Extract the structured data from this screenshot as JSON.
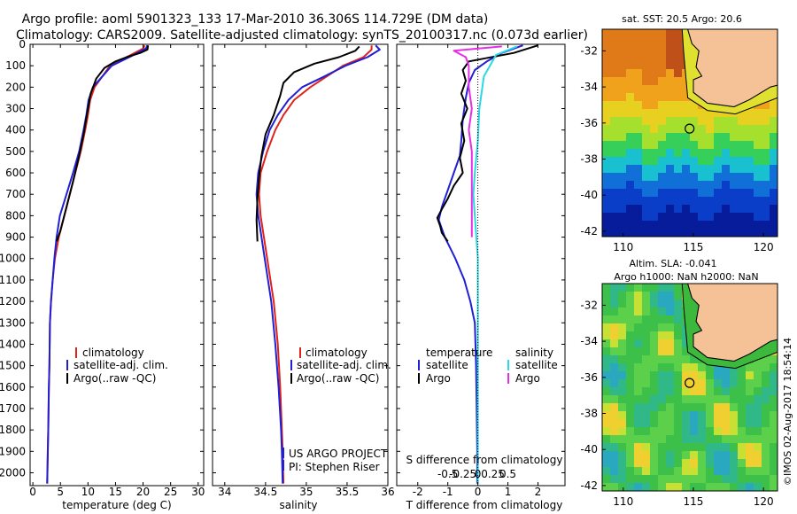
{
  "header": {
    "title_line1": "Argo profile: aoml 5901323_133 17-Mar-2010 36.306S 114.729E (DM data)",
    "title_line2": "Climatology: CARS2009. Satellite-adjusted climatology: synTS_20100317.nc (0.073d earlier)"
  },
  "depth_ticks": [
    "0",
    "100",
    "200",
    "300",
    "400",
    "500",
    "600",
    "700",
    "800",
    "900",
    "1000",
    "1100",
    "1200",
    "1300",
    "1400",
    "1500",
    "1600",
    "1700",
    "1800",
    "1900",
    "2000"
  ],
  "colors": {
    "climatology": "#e0221a",
    "satellite": "#1f1fd6",
    "argo": "#000000",
    "sal_satellite": "#29d9e3",
    "sal_argo": "#e62ee6",
    "land": "#f5c196",
    "coast_band": "#3cb83c"
  },
  "legend": {
    "climatology": "climatology",
    "satellite": "satellite-adj. clim.",
    "argo": "Argo(..raw -QC)"
  },
  "project": {
    "line1": "US ARGO PROJECT",
    "line2": "PI: Stephen Riser"
  },
  "diff_legend": {
    "temperature": "temperature",
    "salinity": "salinity",
    "satellite": "satellite",
    "argo": "Argo"
  },
  "sst_title": "sat. SST: 20.5  Argo: 20.6",
  "sla_title1": "Altim. SLA: -0.041",
  "sla_title2": "Argo h1000: NaN h2000: NaN",
  "watermark": "©IMOS 02-Aug-2017 18:54:14",
  "chart_data": [
    {
      "type": "line",
      "xlabel": "temperature (deg C)",
      "ylabel": "",
      "xlim": [
        -0.5,
        31
      ],
      "ylim": [
        2060,
        0
      ],
      "xticks": [
        "0",
        "5",
        "10",
        "15",
        "20",
        "25",
        "30"
      ],
      "series": [
        {
          "name": "climatology",
          "x": [
            20.3,
            20.0,
            17.0,
            14.0,
            12.6,
            11.2,
            10.4,
            10.0,
            9.5,
            8.7,
            7.7,
            6.7,
            5.7,
            4.7,
            4.0,
            3.6,
            3.3,
            3.1,
            3.0,
            2.9,
            2.8,
            2.7,
            2.6
          ],
          "y": [
            5,
            20,
            60,
            100,
            150,
            200,
            260,
            330,
            400,
            500,
            600,
            700,
            800,
            900,
            1000,
            1100,
            1200,
            1300,
            1500,
            1600,
            1800,
            1900,
            2050
          ]
        },
        {
          "name": "satellite-adj. clim.",
          "x": [
            20.8,
            20.5,
            17.5,
            14.3,
            12.6,
            10.9,
            10.1,
            9.7,
            9.2,
            8.4,
            7.3,
            6.1,
            4.9,
            4.3,
            3.9,
            3.6,
            3.3,
            3.1,
            3.0,
            2.9,
            2.8,
            2.6
          ],
          "y": [
            5,
            20,
            60,
            100,
            150,
            200,
            260,
            330,
            400,
            500,
            600,
            700,
            800,
            900,
            1000,
            1100,
            1200,
            1300,
            1500,
            1600,
            1800,
            2050
          ]
        },
        {
          "name": "Argo(..raw -QC)",
          "x": [
            20.9,
            20.8,
            19.5,
            17.0,
            15.0,
            13.0,
            11.5,
            10.5,
            9.8,
            9.2,
            8.4,
            7.2,
            5.7,
            5.0,
            4.3
          ],
          "y": [
            5,
            25,
            40,
            60,
            80,
            110,
            160,
            230,
            330,
            420,
            520,
            650,
            800,
            870,
            920
          ]
        }
      ],
      "legend_position": "lower-center"
    },
    {
      "type": "line",
      "xlabel": "salinity",
      "ylabel": "",
      "xlim": [
        33.85,
        36.0
      ],
      "ylim": [
        2060,
        0
      ],
      "xticks": [
        "34",
        "34.5",
        "35",
        "35.5",
        "36"
      ],
      "series": [
        {
          "name": "climatology",
          "x": [
            35.8,
            35.8,
            35.7,
            35.45,
            35.25,
            35.05,
            34.85,
            34.72,
            34.62,
            34.52,
            34.44,
            34.42,
            34.44,
            34.48,
            34.52,
            34.56,
            34.6,
            34.65,
            34.68,
            34.7,
            34.71,
            34.72
          ],
          "y": [
            5,
            25,
            60,
            100,
            150,
            200,
            260,
            330,
            400,
            500,
            600,
            700,
            800,
            900,
            1000,
            1100,
            1200,
            1400,
            1600,
            1800,
            1900,
            2050
          ]
        },
        {
          "name": "satellite-adj. clim.",
          "x": [
            35.85,
            35.9,
            35.75,
            35.48,
            35.22,
            34.95,
            34.78,
            34.65,
            34.55,
            34.47,
            34.41,
            34.39,
            34.41,
            34.45,
            34.49,
            34.53,
            34.57,
            34.62,
            34.66,
            34.69,
            34.7,
            34.71
          ],
          "y": [
            5,
            25,
            60,
            100,
            150,
            200,
            260,
            330,
            400,
            500,
            600,
            700,
            800,
            900,
            1000,
            1100,
            1200,
            1400,
            1600,
            1800,
            1900,
            2050
          ]
        },
        {
          "name": "Argo(..raw -QC)",
          "x": [
            35.65,
            35.6,
            35.4,
            35.1,
            34.85,
            34.72,
            34.68,
            34.6,
            34.5,
            34.45,
            34.42,
            34.4,
            34.39,
            34.4
          ],
          "y": [
            10,
            30,
            60,
            90,
            130,
            180,
            240,
            330,
            420,
            520,
            620,
            720,
            820,
            920
          ]
        }
      ],
      "legend_position": "lower-center"
    },
    {
      "type": "line",
      "xlabel": "T difference from climatology",
      "xlabel_top": "S difference from climatology",
      "ylabel": "",
      "xlim": [
        -2.7,
        2.9
      ],
      "ylim": [
        2060,
        0
      ],
      "xticks_bottom": [
        "-2",
        "-1",
        "0",
        "1",
        "2"
      ],
      "xticks_top": [
        "-0.5",
        "-0.25",
        "0",
        "0.25",
        "0.5"
      ],
      "series": [
        {
          "name": "temperature satellite",
          "x": [
            1.5,
            0.8,
            0.3,
            -0.1,
            -0.3,
            -0.4,
            -0.5,
            -0.55,
            -0.6,
            -0.8,
            -1.0,
            -1.2,
            -1.3,
            -1.1,
            -0.75,
            -0.45,
            -0.25,
            -0.1,
            -0.06,
            -0.04,
            -0.02,
            -0.02
          ],
          "y": [
            5,
            40,
            80,
            120,
            180,
            250,
            350,
            450,
            520,
            600,
            680,
            760,
            820,
            900,
            1000,
            1100,
            1200,
            1300,
            1500,
            1700,
            1900,
            2050
          ]
        },
        {
          "name": "temperature Argo",
          "x": [
            2.0,
            1.2,
            -0.3,
            -0.5,
            -0.4,
            -0.55,
            -0.35,
            -0.55,
            -0.45,
            -0.6,
            -0.5,
            -0.8,
            -1.0,
            -1.2,
            -1.35,
            -1.25,
            -1.2,
            -1.0
          ],
          "y": [
            5,
            40,
            80,
            120,
            170,
            230,
            300,
            370,
            450,
            530,
            600,
            660,
            720,
            770,
            810,
            850,
            880,
            920
          ]
        },
        {
          "name": "salinity satellite",
          "x": [
            1.3,
            0.6,
            0.4,
            0.2,
            0.05,
            0,
            -0.1,
            -0.15,
            -0.1,
            -0.05,
            0,
            0,
            0,
            0,
            0
          ],
          "y": [
            10,
            50,
            100,
            150,
            300,
            450,
            600,
            700,
            800,
            900,
            1000,
            1200,
            1500,
            1800,
            2050
          ]
        },
        {
          "name": "salinity Argo",
          "x": [
            0.8,
            -0.8,
            -0.4,
            -0.3,
            -0.3,
            -0.2,
            -0.3,
            -0.2,
            -0.2,
            -0.2,
            -0.2
          ],
          "y": [
            10,
            30,
            60,
            100,
            200,
            300,
            400,
            500,
            600,
            700,
            900
          ]
        }
      ],
      "legend_position": "lower-center"
    },
    {
      "type": "heatmap",
      "title": "sat. SST: 20.5  Argo: 20.6",
      "xlim": [
        108.5,
        121
      ],
      "ylim": [
        -42.3,
        -30.8
      ],
      "xticks": [
        "110",
        "115",
        "120"
      ],
      "yticks": [
        "-32",
        "-34",
        "-36",
        "-38",
        "-40",
        "-42"
      ],
      "marker": {
        "lon": 114.73,
        "lat": -36.31
      }
    },
    {
      "type": "heatmap",
      "title": "Altim. SLA: -0.041",
      "subtitle": "Argo h1000: NaN h2000: NaN",
      "xlim": [
        108.5,
        121
      ],
      "ylim": [
        -42.3,
        -30.8
      ],
      "xticks": [
        "110",
        "115",
        "120"
      ],
      "yticks": [
        "-32",
        "-34",
        "-36",
        "-38",
        "-40",
        "-42"
      ],
      "marker": {
        "lon": 114.73,
        "lat": -36.31
      }
    }
  ]
}
